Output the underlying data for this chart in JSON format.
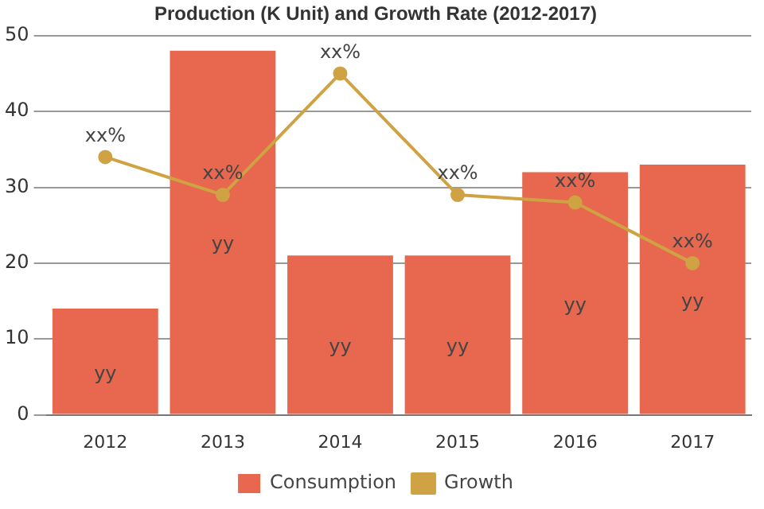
{
  "chart_data": {
    "type": "bar",
    "title": "Production (K Unit) and Growth Rate (2012-2017)",
    "categories": [
      "2012",
      "2013",
      "2014",
      "2015",
      "2016",
      "2017"
    ],
    "series": [
      {
        "name": "Consumption",
        "color": "#e8674f",
        "values": [
          14,
          48,
          21,
          21,
          32,
          33
        ],
        "value_labels": [
          "yy",
          "yy",
          "yy",
          "yy",
          "yy",
          "yy"
        ]
      },
      {
        "name": "Growth",
        "type": "line",
        "color": "#cfa243",
        "values": [
          34,
          29,
          45,
          29,
          28,
          20
        ],
        "value_labels": [
          "xx%",
          "xx%",
          "xx%",
          "xx%",
          "xx%",
          "xx%"
        ]
      }
    ],
    "ylim": [
      0,
      50
    ],
    "yticks": [
      0,
      10,
      20,
      30,
      40,
      50
    ],
    "grid": "y",
    "legend": "bottom",
    "marker": "circle",
    "line_style": "solid"
  }
}
